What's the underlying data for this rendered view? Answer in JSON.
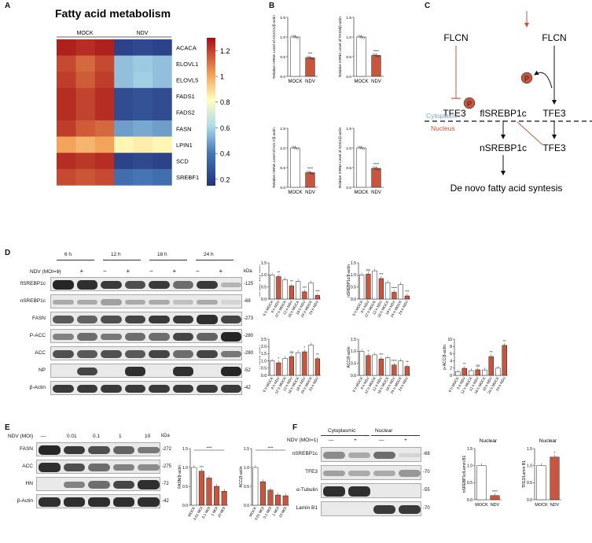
{
  "panel_labels": {
    "A": "A",
    "B": "B",
    "C": "C",
    "D": "D",
    "E": "E",
    "F": "F"
  },
  "panelA": {
    "title": "Fatty acid metabolism",
    "groups": [
      "MOCK",
      "NDV"
    ],
    "genes": [
      "ACACA",
      "ELOVL1",
      "ELOVL5",
      "FADS1",
      "FADS2",
      "FASN",
      "LPIN1",
      "SCD",
      "SREBF1"
    ],
    "colorbar_ticks": [
      "1.2",
      "1",
      "0.8",
      "0.6",
      "0.4",
      "0.2"
    ],
    "heatmap_values": [
      [
        1.22,
        1.2,
        1.22,
        0.25,
        0.27,
        0.25
      ],
      [
        1.15,
        1.1,
        1.15,
        0.55,
        0.57,
        0.55
      ],
      [
        1.17,
        1.12,
        1.17,
        0.55,
        0.58,
        0.55
      ],
      [
        1.2,
        1.16,
        1.2,
        0.28,
        0.3,
        0.28
      ],
      [
        1.2,
        1.16,
        1.2,
        0.28,
        0.3,
        0.28
      ],
      [
        1.17,
        1.12,
        1.1,
        0.48,
        0.5,
        0.48
      ],
      [
        1.0,
        0.96,
        1.0,
        0.82,
        0.84,
        0.82
      ],
      [
        1.2,
        1.18,
        1.2,
        0.25,
        0.27,
        0.25
      ],
      [
        1.15,
        1.13,
        1.15,
        0.38,
        0.4,
        0.38
      ]
    ]
  },
  "panelC": {
    "flcn_left": "FLCN",
    "flcn_right": "FLCN",
    "tfe3_left": "TFE3",
    "tfe3_mid": "TFE3",
    "tfe3_nuc": "TFE3",
    "p_label": "P",
    "flsrebp": "flSREBP1c",
    "nsrebp": "nSREBP1c",
    "cytoplasm": "Cytoplasm",
    "nucleus": "Nucleus",
    "output": "De novo fatty acid syntesis"
  },
  "panelD": {
    "treatment_label": "NDV (MOI=1)",
    "timepoints": [
      "6 h",
      "12 h",
      "18 h",
      "24 h"
    ],
    "lanes": [
      "−",
      "+",
      "−",
      "+",
      "−",
      "+",
      "−",
      "+"
    ],
    "kda_header": "kDa",
    "blots": [
      {
        "name": "flSREBP1c",
        "kda": "125"
      },
      {
        "name": "nSREBP1c",
        "kda": "68"
      },
      {
        "name": "FASN",
        "kda": "273"
      },
      {
        "name": "P-ACC",
        "kda": "280"
      },
      {
        "name": "ACC",
        "kda": "280"
      },
      {
        "name": "NP",
        "kda": "52"
      },
      {
        "name": "β-Actin",
        "kda": "42"
      }
    ]
  },
  "panelE": {
    "treatment_label": "NDV (MOI)",
    "lanes": [
      "—",
      "0.01",
      "0.1",
      "1",
      "10"
    ],
    "kda_header": "kDa",
    "blots": [
      {
        "name": "FASN",
        "kda": "272"
      },
      {
        "name": "ACC",
        "kda": "275"
      },
      {
        "name": "HN",
        "kda": "72"
      },
      {
        "name": "β-Actin",
        "kda": "42"
      }
    ]
  },
  "panelF": {
    "treatment_label": "NDV (MOI=1)",
    "fractions": [
      "Cytoplasmic",
      "Nuclear"
    ],
    "lanes": [
      "—",
      "+",
      "—",
      "+"
    ],
    "blots": [
      {
        "name": "nSREBP1c",
        "kda": "68"
      },
      {
        "name": "TFE3",
        "kda": "70"
      },
      {
        "name": "α-Tubulin",
        "kda": "55"
      },
      {
        "name": "Lamin B1",
        "kda": "70"
      }
    ]
  },
  "chart_data": [
    {
      "id": "B1",
      "type": "bar",
      "categories": [
        "MOCK",
        "NDV"
      ],
      "values": [
        1.0,
        0.47
      ],
      "ylabel": "Relative mRNA Level of ACACA/β-actin",
      "ylim": [
        0,
        1.5
      ],
      "yticks": [
        0,
        0.5,
        1.0,
        1.5
      ],
      "sig": [
        "",
        "***"
      ],
      "colors": [
        "#ffffff",
        "#c8553d"
      ]
    },
    {
      "id": "B2",
      "type": "bar",
      "categories": [
        "MOCK",
        "NDV"
      ],
      "values": [
        1.0,
        0.53
      ],
      "ylabel": "Relative mRNA Level of FASN/β-actin",
      "ylim": [
        0,
        1.5
      ],
      "yticks": [
        0,
        0.5,
        1.0,
        1.5
      ],
      "sig": [
        "",
        "****"
      ],
      "colors": [
        "#ffffff",
        "#c8553d"
      ]
    },
    {
      "id": "B3",
      "type": "bar",
      "categories": [
        "MOCK",
        "NDV"
      ],
      "values": [
        1.0,
        0.37
      ],
      "ylabel": "Relative mRNA Level of ACLY/β-actin",
      "ylim": [
        0,
        1.5
      ],
      "yticks": [
        0,
        0.5,
        1.0,
        1.5
      ],
      "sig": [
        "",
        "****"
      ],
      "colors": [
        "#ffffff",
        "#c8553d"
      ]
    },
    {
      "id": "B4",
      "type": "bar",
      "categories": [
        "MOCK",
        "NDV"
      ],
      "values": [
        1.0,
        0.48
      ],
      "ylabel": "Relative mRNA Level of SCD1/β-actin",
      "ylim": [
        0,
        1.5
      ],
      "yticks": [
        0,
        0.5,
        1.0,
        1.5
      ],
      "sig": [
        "",
        "****"
      ],
      "colors": [
        "#ffffff",
        "#c8553d"
      ]
    },
    {
      "id": "D1",
      "type": "bar",
      "categories": [
        "6 h MOCK",
        "6 h NDV",
        "12 h MOCK",
        "12 h NDV",
        "18 h MOCK",
        "18 h NDV",
        "24 h MOCK",
        "24 h NDV"
      ],
      "values": [
        1.0,
        0.93,
        0.8,
        0.55,
        0.73,
        0.3,
        0.67,
        0.15
      ],
      "ylabel": "flSREBP1c/β-actin",
      "ylim": [
        0,
        1.5
      ],
      "yticks": [
        0,
        0.5,
        1.0,
        1.5
      ],
      "sig": [
        "",
        "**",
        "",
        "**",
        "",
        "***",
        "",
        "***"
      ]
    },
    {
      "id": "D2",
      "type": "bar",
      "categories": [
        "6 h MOCK",
        "6 h NDV",
        "12 h MOCK",
        "12 h NDV",
        "18 h MOCK",
        "18 h NDV",
        "24 h MOCK",
        "24 h NDV"
      ],
      "values": [
        1.0,
        1.03,
        1.17,
        0.85,
        0.68,
        0.28,
        0.6,
        0.13
      ],
      "ylabel": "nSREBP1c/β-actin",
      "ylim": [
        0,
        1.5
      ],
      "yticks": [
        0,
        0.5,
        1.0,
        1.5
      ],
      "sig": [
        "",
        "ns",
        "",
        "***",
        "",
        "****",
        "",
        "***"
      ]
    },
    {
      "id": "D3",
      "type": "bar",
      "categories": [
        "6 h MOCK",
        "6 h NDV",
        "12 h MOCK",
        "12 h NDV",
        "18 h MOCK",
        "18 h NDV",
        "24 h MOCK",
        "24 h NDV"
      ],
      "values": [
        1.0,
        0.87,
        1.17,
        1.3,
        1.57,
        1.63,
        2.1,
        1.15
      ],
      "ylabel": "FASN/β-actin",
      "ylim": [
        0,
        2.5
      ],
      "yticks": [
        0,
        0.5,
        1.0,
        1.5,
        2.0,
        2.5
      ],
      "sig": [
        "",
        "*",
        "",
        "ns",
        "",
        "*",
        "",
        "**"
      ]
    },
    {
      "id": "D4",
      "type": "bar",
      "categories": [
        "6 h MOCK",
        "6 h NDV",
        "12 h MOCK",
        "12 h NDV",
        "18 h MOCK",
        "18 h NDV",
        "24 h MOCK",
        "24 h NDV"
      ],
      "values": [
        1.0,
        0.82,
        0.85,
        0.68,
        0.73,
        0.43,
        0.6,
        0.37
      ],
      "ylabel": "ACC/β-actin",
      "ylim": [
        0,
        1.5
      ],
      "yticks": [
        0,
        0.5,
        1.0,
        1.5
      ],
      "sig": [
        "",
        "*",
        "",
        "***",
        "",
        "****",
        "",
        "**"
      ]
    },
    {
      "id": "D5",
      "type": "bar",
      "categories": [
        "6 h MOCK",
        "6 h NDV",
        "12 h MOCK",
        "12 h NDV",
        "18 h MOCK",
        "18 h NDV",
        "24 h MOCK",
        "24 h NDV"
      ],
      "values": [
        1.0,
        1.95,
        1.3,
        1.55,
        1.5,
        5.2,
        2.0,
        8.3
      ],
      "ylabel": "p-ACC/β-actin",
      "ylim": [
        0,
        10
      ],
      "yticks": [
        0,
        2,
        4,
        6,
        8,
        10
      ],
      "sig": [
        "",
        "**",
        "",
        "ns",
        "",
        "**",
        "",
        "**"
      ]
    },
    {
      "id": "E1",
      "type": "bar",
      "categories": [
        "MOCK",
        "0.01 MOI",
        "0.1 MOI",
        "1 MOI",
        "10 MOI"
      ],
      "values": [
        1.0,
        0.9,
        0.72,
        0.5,
        0.37
      ],
      "ylabel": "FASN/β-actin",
      "ylim": [
        0,
        1.5
      ],
      "yticks": [
        0,
        0.5,
        1.0,
        1.5
      ],
      "sig": [
        "",
        "***",
        "",
        "",
        ""
      ],
      "bracket": "****"
    },
    {
      "id": "E2",
      "type": "bar",
      "categories": [
        "MOCK",
        "0.01 MOI",
        "0.1 MOI",
        "1 MOI",
        "10 MOI"
      ],
      "values": [
        1.0,
        0.62,
        0.4,
        0.27,
        0.25
      ],
      "ylabel": "ACC/β-actin",
      "ylim": [
        0,
        1.5
      ],
      "yticks": [
        0,
        0.5,
        1.0,
        1.5
      ],
      "sig": [
        "",
        "",
        "",
        "",
        ""
      ],
      "bracket": "****"
    },
    {
      "id": "F1",
      "type": "bar",
      "title": "Nuclear",
      "categories": [
        "MOCK",
        "NDV"
      ],
      "values": [
        1.0,
        0.12
      ],
      "ylabel": "nSREBP1c/Lamin B1",
      "ylim": [
        0,
        1.5
      ],
      "yticks": [
        0,
        0.5,
        1.0,
        1.5
      ],
      "sig": [
        "",
        "****"
      ]
    },
    {
      "id": "F2",
      "type": "bar",
      "title": "Nuclear",
      "categories": [
        "MOCK",
        "NDV"
      ],
      "values": [
        1.0,
        1.25
      ],
      "ylabel": "TFE3/Lamin B1",
      "ylim": [
        0,
        1.5
      ],
      "yticks": [
        0,
        0.5,
        1.0,
        1.5
      ],
      "sig": [
        "",
        "*"
      ]
    }
  ]
}
